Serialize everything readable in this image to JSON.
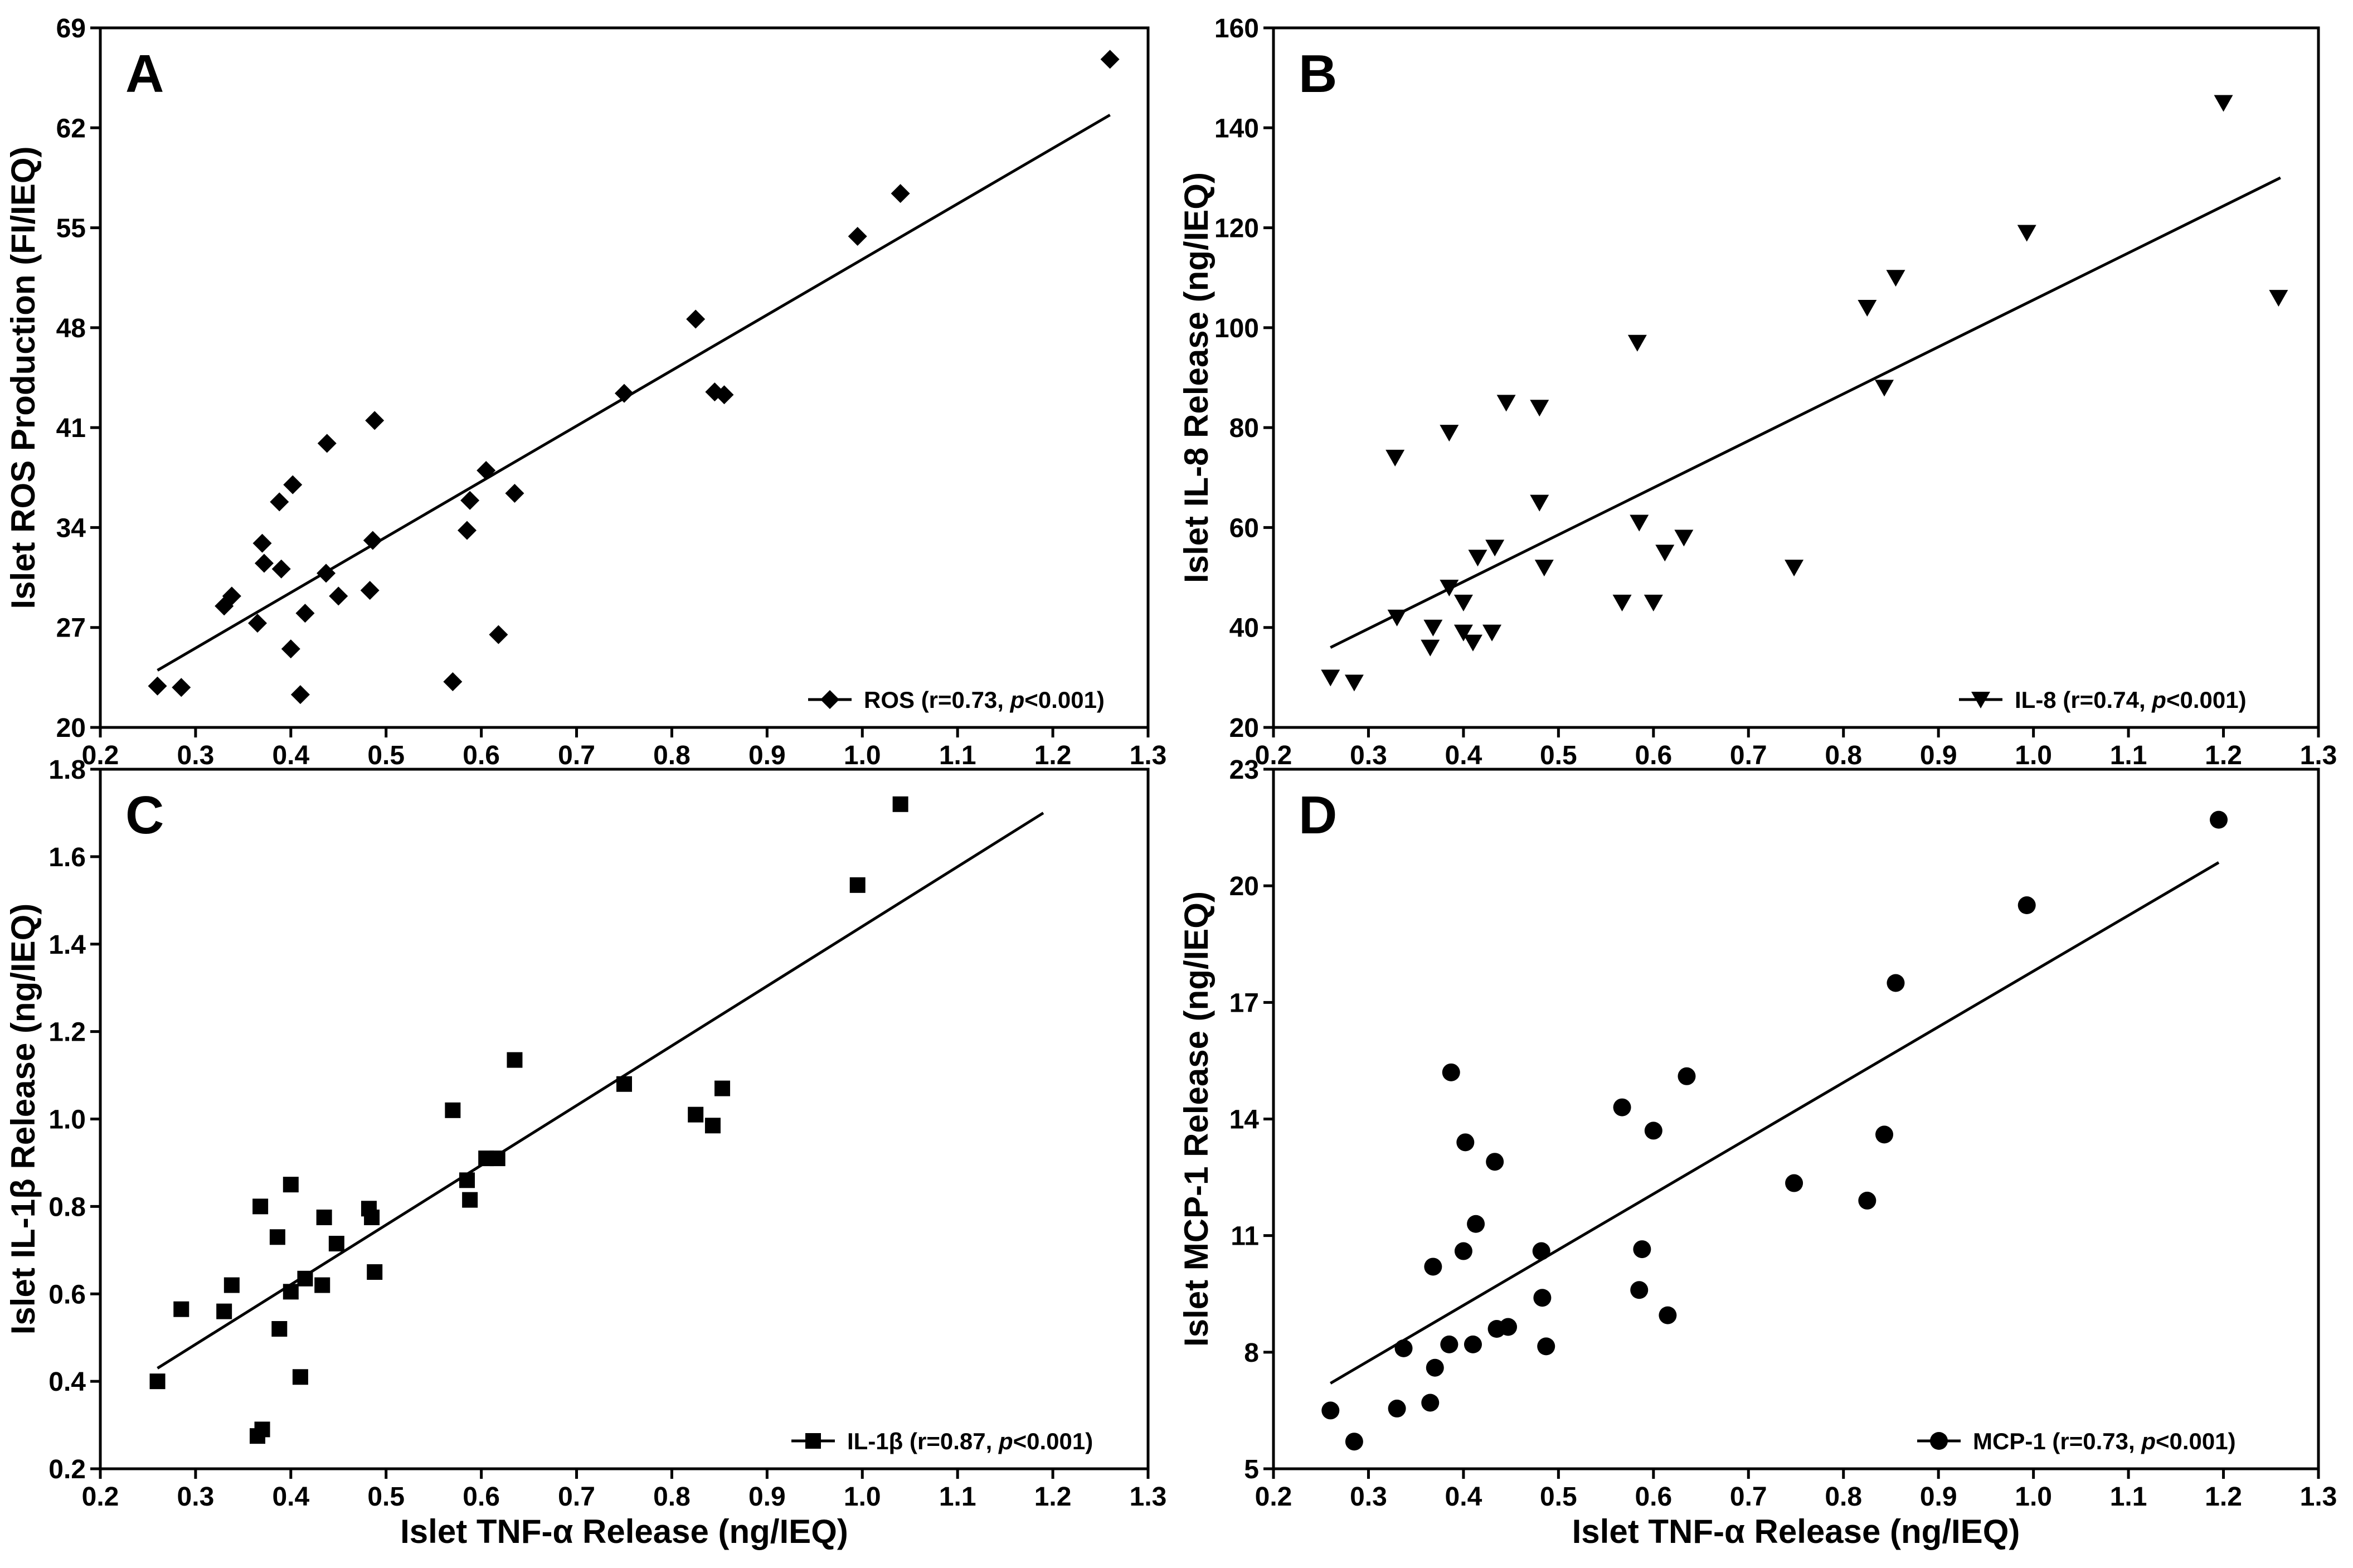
{
  "colors": {
    "ink": "#000000",
    "background": "#ffffff"
  },
  "chart_data": [
    {
      "panel": "A",
      "type": "scatter",
      "marker": "diamond",
      "xlabel": "",
      "ylabel": "Islet ROS Production (FI/IEQ)",
      "xlim": [
        0.2,
        1.3
      ],
      "ylim": [
        20,
        69
      ],
      "xticks": [
        "0.2",
        "0.3",
        "0.4",
        "0.5",
        "0.6",
        "0.7",
        "0.8",
        "0.9",
        "1.0",
        "1.1",
        "1.2",
        "1.3"
      ],
      "yticks": [
        "20",
        "27",
        "34",
        "41",
        "48",
        "55",
        "62",
        "69"
      ],
      "legend": {
        "name": "ROS",
        "stats": "(r=0.73, ",
        "p_symbol": "p",
        "p_value": "<0.001)",
        "placement": "bottom-right"
      },
      "fit": {
        "x": [
          0.26,
          1.26
        ],
        "y": [
          24.0,
          62.9
        ]
      },
      "x": [
        0.26,
        0.285,
        0.33,
        0.338,
        0.365,
        0.37,
        0.372,
        0.388,
        0.39,
        0.4,
        0.402,
        0.41,
        0.415,
        0.437,
        0.438,
        0.45,
        0.483,
        0.486,
        0.488,
        0.57,
        0.585,
        0.588,
        0.605,
        0.618,
        0.635,
        0.75,
        0.825,
        0.845,
        0.855,
        0.995,
        1.04,
        1.26
      ],
      "y": [
        22.9,
        22.8,
        28.5,
        29.2,
        27.3,
        32.9,
        31.5,
        35.8,
        31.1,
        25.5,
        37.0,
        22.3,
        28.0,
        30.8,
        39.9,
        29.2,
        29.6,
        33.1,
        41.5,
        23.2,
        33.8,
        35.9,
        38.0,
        26.5,
        36.4,
        43.4,
        48.6,
        43.5,
        43.3,
        54.4,
        57.4,
        66.8
      ]
    },
    {
      "panel": "B",
      "type": "scatter",
      "marker": "triangle-down",
      "xlabel": "",
      "ylabel": "Islet IL-8 Release (ng/IEQ)",
      "xlim": [
        0.2,
        1.3
      ],
      "ylim": [
        20,
        160
      ],
      "xticks": [
        "0.2",
        "0.3",
        "0.4",
        "0.5",
        "0.6",
        "0.7",
        "0.8",
        "0.9",
        "1.0",
        "1.1",
        "1.2",
        "1.3"
      ],
      "yticks": [
        "20",
        "40",
        "60",
        "80",
        "100",
        "120",
        "140",
        "160"
      ],
      "legend": {
        "name": "IL-8",
        "stats": "(r=0.74, ",
        "p_symbol": "p",
        "p_value": "<0.001)",
        "placement": "bottom-right"
      },
      "fit": {
        "x": [
          0.26,
          1.26
        ],
        "y": [
          36.0,
          130.0
        ]
      },
      "x": [
        0.26,
        0.285,
        0.328,
        0.33,
        0.365,
        0.368,
        0.385,
        0.385,
        0.4,
        0.4,
        0.41,
        0.415,
        0.43,
        0.433,
        0.445,
        0.48,
        0.48,
        0.485,
        0.567,
        0.583,
        0.585,
        0.6,
        0.612,
        0.632,
        0.748,
        0.825,
        0.843,
        0.855,
        0.993,
        1.2,
        1.258
      ],
      "y": [
        30,
        29,
        74,
        42,
        36,
        40,
        79,
        48,
        39,
        45,
        37,
        54,
        39,
        56,
        85,
        84,
        65,
        52,
        45,
        97,
        61,
        45,
        55,
        58,
        52,
        104,
        88,
        110,
        119,
        145,
        106
      ]
    },
    {
      "panel": "C",
      "type": "scatter",
      "marker": "square",
      "xlabel": "Islet TNF-α Release (ng/IEQ)",
      "ylabel": "Islet IL-1β Release (ng/IEQ)",
      "xlim": [
        0.2,
        1.3
      ],
      "ylim": [
        0.2,
        1.8
      ],
      "xticks": [
        "0.2",
        "0.3",
        "0.4",
        "0.5",
        "0.6",
        "0.7",
        "0.8",
        "0.9",
        "1.0",
        "1.1",
        "1.2",
        "1.3"
      ],
      "yticks": [
        "0.2",
        "0.4",
        "0.6",
        "0.8",
        "1.0",
        "1.2",
        "1.4",
        "1.6",
        "1.8"
      ],
      "legend": {
        "name": "IL-1β",
        "stats": "(r=0.87, ",
        "p_symbol": "p",
        "p_value": "<0.001)",
        "placement": "bottom-right"
      },
      "fit": {
        "x": [
          0.26,
          1.19
        ],
        "y": [
          0.43,
          1.7
        ]
      },
      "x": [
        0.26,
        0.285,
        0.33,
        0.338,
        0.365,
        0.368,
        0.37,
        0.386,
        0.388,
        0.4,
        0.4,
        0.41,
        0.415,
        0.433,
        0.435,
        0.448,
        0.482,
        0.485,
        0.488,
        0.57,
        0.585,
        0.588,
        0.605,
        0.617,
        0.635,
        0.75,
        0.825,
        0.843,
        0.853,
        0.995,
        1.04
      ],
      "y": [
        0.4,
        0.565,
        0.56,
        0.62,
        0.275,
        0.8,
        0.29,
        0.73,
        0.52,
        0.605,
        0.85,
        0.41,
        0.635,
        0.62,
        0.775,
        0.715,
        0.795,
        0.775,
        0.65,
        1.02,
        0.86,
        0.815,
        0.91,
        0.91,
        1.135,
        1.08,
        1.01,
        0.985,
        1.07,
        1.535,
        1.72
      ]
    },
    {
      "panel": "D",
      "type": "scatter",
      "marker": "circle",
      "xlabel": "Islet TNF-α Release (ng/IEQ)",
      "ylabel": "Islet MCP-1 Release (ng/IEQ)",
      "xlim": [
        0.2,
        1.3
      ],
      "ylim": [
        5,
        23
      ],
      "xticks": [
        "0.2",
        "0.3",
        "0.4",
        "0.5",
        "0.6",
        "0.7",
        "0.8",
        "0.9",
        "1.0",
        "1.1",
        "1.2",
        "1.3"
      ],
      "yticks": [
        "5",
        "8",
        "11",
        "14",
        "17",
        "20",
        "23"
      ],
      "legend": {
        "name": "MCP-1",
        "stats": "(r=0.73, ",
        "p_symbol": "p",
        "p_value": "<0.001)",
        "placement": "bottom-right"
      },
      "fit": {
        "x": [
          0.26,
          1.195
        ],
        "y": [
          7.2,
          20.6
        ]
      },
      "x": [
        0.26,
        0.285,
        0.33,
        0.337,
        0.365,
        0.368,
        0.37,
        0.385,
        0.387,
        0.4,
        0.402,
        0.41,
        0.413,
        0.433,
        0.435,
        0.447,
        0.482,
        0.483,
        0.487,
        0.567,
        0.585,
        0.588,
        0.6,
        0.615,
        0.635,
        0.748,
        0.825,
        0.843,
        0.855,
        0.993,
        1.195
      ],
      "y": [
        6.5,
        5.7,
        6.55,
        8.1,
        6.7,
        10.2,
        7.6,
        8.2,
        15.2,
        10.6,
        13.4,
        8.2,
        11.3,
        12.9,
        8.6,
        8.65,
        10.6,
        9.4,
        8.15,
        14.3,
        9.6,
        10.65,
        13.7,
        8.95,
        15.1,
        12.35,
        11.9,
        13.6,
        17.5,
        19.5,
        21.7
      ]
    }
  ]
}
